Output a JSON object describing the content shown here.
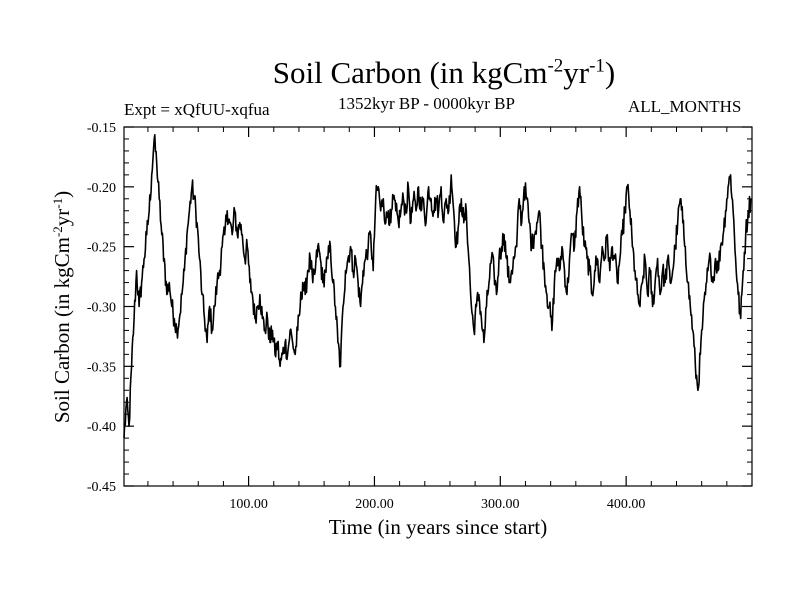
{
  "chart_data": {
    "type": "line",
    "title": "Soil Carbon (in kgCm",
    "title_units": {
      "exp1": "-2",
      "mid": "yr",
      "exp2": "-1",
      "close": ")"
    },
    "subtitle": "1352kyr BP - 0000kyr BP",
    "experiment": "Expt = xQfUU-xqfua",
    "period": "ALL_MONTHS",
    "xlabel": "Time (in years since start)",
    "ylabel": "Soil Carbon (in kgCm",
    "ylabel_units": {
      "exp1": "-2",
      "mid": "yr",
      "exp2": "-1",
      "close": ")"
    },
    "xlim": [
      1,
      500
    ],
    "ylim": [
      -0.45,
      -0.15
    ],
    "x_ticks": [
      100,
      200,
      300,
      400
    ],
    "x_tick_labels": [
      "100.00",
      "200.00",
      "300.00",
      "400.00"
    ],
    "y_ticks": [
      -0.45,
      -0.4,
      -0.35,
      -0.3,
      -0.25,
      -0.2,
      -0.15
    ],
    "y_tick_labels": [
      "-0.45",
      "-0.40",
      "-0.35",
      "-0.30",
      "-0.25",
      "-0.20",
      "-0.15"
    ],
    "line_color": "#000000",
    "series": [
      {
        "name": "Soil Carbon",
        "x": [
          1,
          3,
          5,
          7,
          9,
          11,
          13,
          15,
          17,
          19,
          21,
          23,
          25,
          27,
          29,
          31,
          33,
          35,
          37,
          39,
          41,
          43,
          45,
          47,
          49,
          51,
          53,
          55,
          57,
          59,
          61,
          63,
          65,
          67,
          69,
          71,
          73,
          75,
          77,
          79,
          81,
          83,
          85,
          87,
          89,
          91,
          93,
          95,
          97,
          99,
          101,
          103,
          105,
          107,
          109,
          111,
          113,
          115,
          117,
          119,
          121,
          123,
          125,
          127,
          129,
          131,
          133,
          135,
          137,
          139,
          141,
          143,
          145,
          147,
          149,
          151,
          153,
          155,
          157,
          159,
          161,
          163,
          165,
          167,
          169,
          171,
          173,
          175,
          177,
          179,
          181,
          183,
          185,
          187,
          189,
          191,
          193,
          195,
          197,
          199,
          201,
          203,
          205,
          207,
          209,
          211,
          213,
          215,
          217,
          219,
          221,
          223,
          225,
          227,
          229,
          231,
          233,
          235,
          237,
          239,
          241,
          243,
          245,
          247,
          249,
          251,
          253,
          255,
          257,
          259,
          261,
          263,
          265,
          267,
          269,
          271,
          273,
          275,
          277,
          279,
          281,
          283,
          285,
          287,
          289,
          291,
          293,
          295,
          297,
          299,
          301,
          303,
          305,
          307,
          309,
          311,
          313,
          315,
          317,
          319,
          321,
          323,
          325,
          327,
          329,
          331,
          333,
          335,
          337,
          339,
          341,
          343,
          345,
          347,
          349,
          351,
          353,
          355,
          357,
          359,
          361,
          363,
          365,
          367,
          369,
          371,
          373,
          375,
          377,
          379,
          381,
          383,
          385,
          387,
          389,
          391,
          393,
          395,
          397,
          399,
          401,
          403,
          405,
          407,
          409,
          411,
          413,
          415,
          417,
          419,
          421,
          423,
          425,
          427,
          429,
          431,
          433,
          435,
          437,
          439,
          441,
          443,
          445,
          447,
          449,
          451,
          453,
          455,
          457,
          459,
          461,
          463,
          465,
          467,
          469,
          471,
          473,
          475,
          477,
          479,
          481,
          483,
          485,
          487,
          489,
          491,
          493,
          495,
          497,
          499
        ],
        "values": [
          -0.41,
          -0.38,
          -0.4,
          -0.35,
          -0.31,
          -0.27,
          -0.3,
          -0.28,
          -0.26,
          -0.24,
          -0.22,
          -0.19,
          -0.16,
          -0.18,
          -0.21,
          -0.24,
          -0.26,
          -0.29,
          -0.28,
          -0.3,
          -0.31,
          -0.32,
          -0.31,
          -0.29,
          -0.27,
          -0.24,
          -0.22,
          -0.2,
          -0.21,
          -0.23,
          -0.26,
          -0.29,
          -0.31,
          -0.33,
          -0.3,
          -0.32,
          -0.3,
          -0.28,
          -0.27,
          -0.25,
          -0.24,
          -0.22,
          -0.23,
          -0.24,
          -0.22,
          -0.24,
          -0.23,
          -0.24,
          -0.26,
          -0.25,
          -0.28,
          -0.29,
          -0.31,
          -0.3,
          -0.29,
          -0.31,
          -0.32,
          -0.31,
          -0.33,
          -0.32,
          -0.34,
          -0.33,
          -0.35,
          -0.34,
          -0.33,
          -0.34,
          -0.32,
          -0.33,
          -0.34,
          -0.32,
          -0.3,
          -0.28,
          -0.29,
          -0.27,
          -0.26,
          -0.28,
          -0.27,
          -0.25,
          -0.26,
          -0.28,
          -0.27,
          -0.26,
          -0.25,
          -0.28,
          -0.3,
          -0.33,
          -0.35,
          -0.3,
          -0.27,
          -0.26,
          -0.25,
          -0.27,
          -0.26,
          -0.28,
          -0.3,
          -0.27,
          -0.26,
          -0.25,
          -0.24,
          -0.27,
          -0.21,
          -0.2,
          -0.22,
          -0.21,
          -0.23,
          -0.22,
          -0.23,
          -0.21,
          -0.22,
          -0.23,
          -0.22,
          -0.21,
          -0.22,
          -0.2,
          -0.23,
          -0.21,
          -0.22,
          -0.2,
          -0.22,
          -0.21,
          -0.23,
          -0.2,
          -0.21,
          -0.22,
          -0.21,
          -0.22,
          -0.2,
          -0.23,
          -0.21,
          -0.22,
          -0.19,
          -0.22,
          -0.25,
          -0.23,
          -0.21,
          -0.23,
          -0.22,
          -0.26,
          -0.3,
          -0.32,
          -0.3,
          -0.29,
          -0.31,
          -0.33,
          -0.3,
          -0.28,
          -0.26,
          -0.27,
          -0.29,
          -0.26,
          -0.25,
          -0.24,
          -0.26,
          -0.28,
          -0.27,
          -0.26,
          -0.25,
          -0.21,
          -0.23,
          -0.2,
          -0.21,
          -0.23,
          -0.25,
          -0.24,
          -0.23,
          -0.22,
          -0.25,
          -0.27,
          -0.29,
          -0.3,
          -0.32,
          -0.28,
          -0.26,
          -0.27,
          -0.25,
          -0.27,
          -0.29,
          -0.26,
          -0.24,
          -0.25,
          -0.22,
          -0.2,
          -0.23,
          -0.25,
          -0.26,
          -0.27,
          -0.29,
          -0.27,
          -0.26,
          -0.28,
          -0.25,
          -0.26,
          -0.24,
          -0.27,
          -0.25,
          -0.26,
          -0.28,
          -0.26,
          -0.24,
          -0.22,
          -0.2,
          -0.22,
          -0.25,
          -0.27,
          -0.29,
          -0.3,
          -0.28,
          -0.26,
          -0.29,
          -0.27,
          -0.3,
          -0.28,
          -0.26,
          -0.29,
          -0.27,
          -0.28,
          -0.26,
          -0.28,
          -0.27,
          -0.25,
          -0.23,
          -0.21,
          -0.23,
          -0.25,
          -0.28,
          -0.3,
          -0.32,
          -0.35,
          -0.37,
          -0.34,
          -0.31,
          -0.29,
          -0.27,
          -0.26,
          -0.28,
          -0.26,
          -0.27,
          -0.25,
          -0.24,
          -0.22,
          -0.2,
          -0.19,
          -0.22,
          -0.26,
          -0.29,
          -0.31,
          -0.27,
          -0.24,
          -0.22,
          -0.21
        ]
      }
    ]
  }
}
